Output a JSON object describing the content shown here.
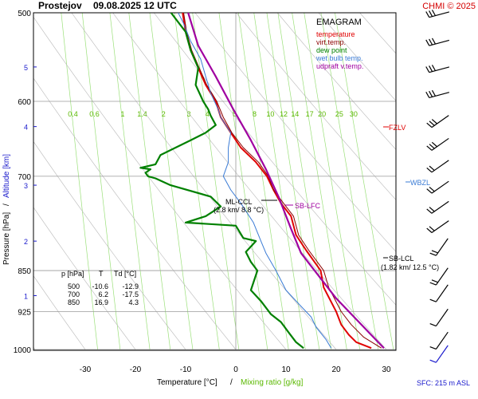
{
  "header": {
    "station": "Prostejov",
    "datetime": "09.08.2025 12 UTC",
    "credit": "CHMI © 2025"
  },
  "footer": {
    "x_label_temp": "Temperature [°C]",
    "x_label_sep": "/",
    "x_label_mix": "Mixing ratio [g/kg]",
    "sfc": "SFC: 215 m ASL"
  },
  "axes": {
    "y_label_pressure": "Pressure [hPa]",
    "y_label_sep": "/",
    "y_label_alt": "Altitude [km]"
  },
  "legend": {
    "title": "EMAGRAM",
    "items": [
      {
        "label": "temperature",
        "color": "#e00000"
      },
      {
        "label": "virt.temp.",
        "color": "#8b0000"
      },
      {
        "label": "dew point",
        "color": "#008000"
      },
      {
        "label": "wet bulb temp.",
        "color": "#3a7bd5"
      },
      {
        "label": "udpraft v.temp.",
        "color": "#a000a0"
      }
    ]
  },
  "levels": {
    "fzlv": "FZLV",
    "wbzl": "WBZL",
    "sb_lfc": "SB-LFC",
    "sb_lcl": "SB-LCL",
    "sb_lcl_detail": "(1.82 km/ 12.5 °C)",
    "ml_ccl": "ML-CCL",
    "ml_ccl_detail": "(2.8 km/ 8.8 °C)"
  },
  "table": {
    "header": [
      "p [hPa]",
      "T",
      "Td [°C]"
    ],
    "rows": [
      [
        "500",
        "-10.6",
        "-12.9"
      ],
      [
        "700",
        "6.2",
        "-17.5"
      ],
      [
        "850",
        "16.9",
        "4.3"
      ]
    ]
  },
  "chart_data": {
    "type": "line",
    "title": "Prostejov  09.08.2025 12 UTC",
    "xlabel": "Temperature [°C] / Mixing ratio [g/kg]",
    "ylabel": "Pressure [hPa] / Altitude [km]",
    "xlim": [
      -38,
      32
    ],
    "ylim": [
      1000,
      500
    ],
    "y_scale": "log",
    "x_ticks": [
      -30,
      -20,
      -10,
      0,
      10,
      20,
      30
    ],
    "p_ticks": [
      500,
      600,
      700,
      850,
      925,
      1000
    ],
    "alt_ticks": [
      {
        "label": "1",
        "p": 895
      },
      {
        "label": "2",
        "p": 800
      },
      {
        "label": "3",
        "p": 713
      },
      {
        "label": "4",
        "p": 632
      },
      {
        "label": "5",
        "p": 559
      }
    ],
    "mixing_ratio_labels": [
      "0.4",
      "0.6",
      "1",
      "1.4",
      "2",
      "3",
      "4",
      "6",
      "8",
      "10",
      "12",
      "14",
      "17",
      "20",
      "25",
      "30"
    ],
    "mixing_ratio_values": [
      0.4,
      0.6,
      1,
      1.4,
      2,
      3,
      4,
      6,
      8,
      10,
      12,
      14,
      17,
      20,
      25,
      30
    ],
    "series": [
      {
        "name": "temperature",
        "color": "#e00000",
        "points": [
          [
            27,
            997
          ],
          [
            24,
            985
          ],
          [
            22.5,
            970
          ],
          [
            21,
            950
          ],
          [
            20,
            925
          ],
          [
            17.5,
            880
          ],
          [
            16.9,
            850
          ],
          [
            14,
            815
          ],
          [
            12,
            790
          ],
          [
            11,
            760
          ],
          [
            9,
            740
          ],
          [
            7.5,
            720
          ],
          [
            6.2,
            700
          ],
          [
            4,
            680
          ],
          [
            1,
            660
          ],
          [
            -1,
            640
          ],
          [
            -3,
            620
          ],
          [
            -4,
            600
          ],
          [
            -6,
            580
          ],
          [
            -7.5,
            560
          ],
          [
            -9,
            540
          ],
          [
            -10,
            520
          ],
          [
            -10.6,
            500
          ]
        ]
      },
      {
        "name": "virt.temp.",
        "color": "#8b0000",
        "points": [
          [
            29,
            997
          ],
          [
            25.5,
            975
          ],
          [
            23,
            950
          ],
          [
            21,
            925
          ],
          [
            18.5,
            880
          ],
          [
            17.5,
            850
          ],
          [
            14.5,
            815
          ],
          [
            12.5,
            790
          ],
          [
            11.5,
            760
          ],
          [
            9.5,
            740
          ],
          [
            7.5,
            720
          ],
          [
            6.5,
            700
          ],
          [
            4.5,
            680
          ],
          [
            1.5,
            660
          ],
          [
            -0.8,
            640
          ],
          [
            -2.5,
            620
          ],
          [
            -3.8,
            600
          ],
          [
            -5.8,
            580
          ],
          [
            -7.3,
            560
          ],
          [
            -8.8,
            540
          ],
          [
            -9.8,
            520
          ],
          [
            -10.4,
            500
          ]
        ]
      },
      {
        "name": "dew point",
        "color": "#008000",
        "points": [
          [
            13.5,
            997
          ],
          [
            12,
            985
          ],
          [
            10.5,
            965
          ],
          [
            9,
            945
          ],
          [
            7,
            930
          ],
          [
            5,
            905
          ],
          [
            3,
            885
          ],
          [
            4.3,
            850
          ],
          [
            3,
            835
          ],
          [
            2,
            818
          ],
          [
            4,
            800
          ],
          [
            1.5,
            795
          ],
          [
            0,
            775
          ],
          [
            -10,
            770
          ],
          [
            -6,
            760
          ],
          [
            -3,
            745
          ],
          [
            -5,
            730
          ],
          [
            -13,
            713
          ],
          [
            -16,
            703
          ],
          [
            -17.5,
            700
          ],
          [
            -18,
            695
          ],
          [
            -17,
            690
          ],
          [
            -19,
            688
          ],
          [
            -16,
            683
          ],
          [
            -15,
            670
          ],
          [
            -9,
            650
          ],
          [
            -6,
            640
          ],
          [
            -4,
            630
          ],
          [
            -5,
            618
          ],
          [
            -5.5,
            610
          ],
          [
            -6.5,
            600
          ],
          [
            -8,
            580
          ],
          [
            -7.5,
            560
          ],
          [
            -9,
            540
          ],
          [
            -10,
            520
          ],
          [
            -12.9,
            500
          ]
        ]
      },
      {
        "name": "wet bulb temp.",
        "color": "#3a7bd5",
        "points": [
          [
            19,
            997
          ],
          [
            18,
            980
          ],
          [
            16,
            955
          ],
          [
            15,
            935
          ],
          [
            13,
            915
          ],
          [
            10,
            885
          ],
          [
            8,
            850
          ],
          [
            6,
            820
          ],
          [
            5,
            800
          ],
          [
            3.5,
            770
          ],
          [
            1,
            740
          ],
          [
            -1,
            720
          ],
          [
            -2.5,
            700
          ],
          [
            -1.5,
            680
          ],
          [
            -1.5,
            660
          ],
          [
            -1,
            640
          ],
          [
            -3,
            620
          ],
          [
            -3.5,
            610
          ],
          [
            -5,
            590
          ],
          [
            -6,
            570
          ],
          [
            -7,
            550
          ],
          [
            -9,
            530
          ],
          [
            -10.5,
            510
          ],
          [
            -11.5,
            500
          ]
        ]
      },
      {
        "name": "udpraft v.temp.",
        "color": "#a000a0",
        "points": [
          [
            29.5,
            997
          ],
          [
            20,
            900
          ],
          [
            13,
            820
          ],
          [
            11,
            780
          ],
          [
            8.5,
            730
          ],
          [
            6,
            690
          ],
          [
            3,
            650
          ],
          [
            -0.5,
            610
          ],
          [
            -4,
            570
          ],
          [
            -7.5,
            535
          ],
          [
            -9.5,
            500
          ]
        ]
      }
    ],
    "wind_barbs_p": [
      500,
      530,
      560,
      590,
      620,
      650,
      680,
      710,
      740,
      770,
      800,
      850,
      880,
      925,
      970,
      997
    ]
  }
}
